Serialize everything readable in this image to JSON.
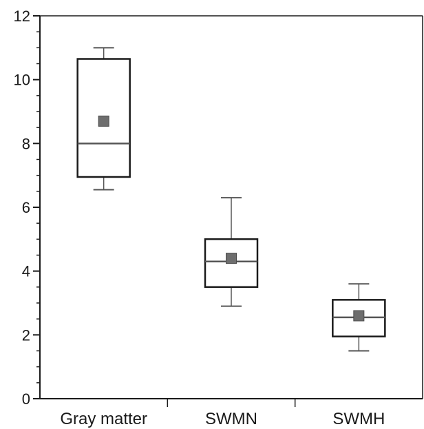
{
  "chart_data": {
    "type": "box",
    "title": "",
    "xlabel": "",
    "ylabel": "",
    "ylim": [
      0,
      12
    ],
    "yticks": [
      0,
      2,
      4,
      6,
      8,
      10,
      12
    ],
    "y_minor_step": 0.5,
    "grid": false,
    "categories": [
      "Gray matter",
      "SWMN",
      "SWMH"
    ],
    "boxes": [
      {
        "category": "Gray matter",
        "whisker_low": 6.55,
        "q1": 6.95,
        "median": 8.0,
        "q3": 10.65,
        "whisker_high": 11.0,
        "mean": 8.7
      },
      {
        "category": "SWMN",
        "whisker_low": 2.9,
        "q1": 3.5,
        "median": 4.3,
        "q3": 5.0,
        "whisker_high": 6.3,
        "mean": 4.4
      },
      {
        "category": "SWMH",
        "whisker_low": 1.5,
        "q1": 1.95,
        "median": 2.55,
        "q3": 3.1,
        "whisker_high": 3.6,
        "mean": 2.6
      }
    ],
    "colors": {
      "axis": "#1a1a1a",
      "box": "#1a1a1a",
      "whisker": "#555555",
      "mean_marker": "#6e6e6e"
    }
  }
}
